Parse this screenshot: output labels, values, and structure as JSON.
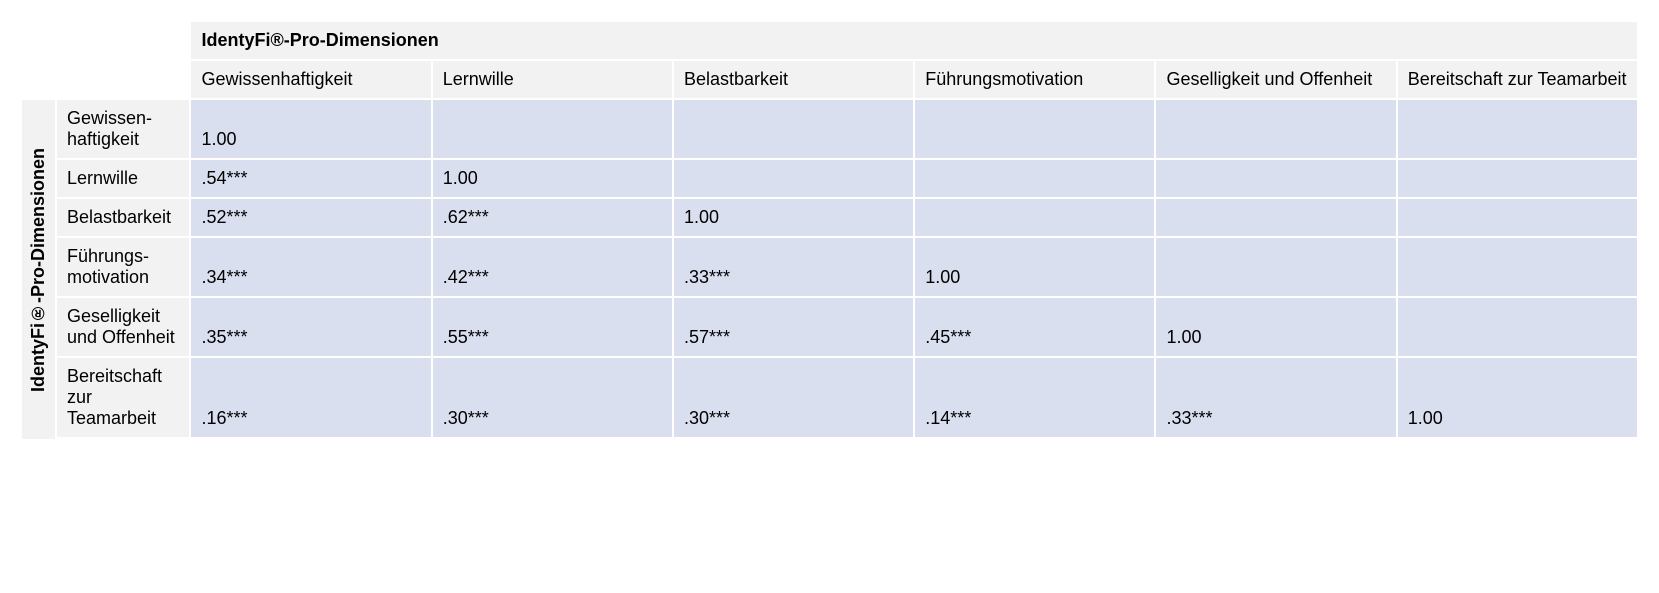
{
  "table": {
    "type": "table",
    "top_group_title": "IdentyFi®-Pro-Dimensionen",
    "side_group_title": "IdentyFi®-Pro-Dimensionen",
    "columns": [
      "Gewissenhaftigkeit",
      "Lernwille",
      "Belastbarkeit",
      "Führungsmotivation",
      "Geselligkeit und Offenheit",
      "Bereitschaft zur Teamarbeit"
    ],
    "row_labels": [
      "Gewissen-haftigkeit",
      "Lernwille",
      "Belastbarkeit",
      "Führungs-motivation",
      "Geselligkeit und Offenheit",
      "Bereitschaft zur Teamarbeit"
    ],
    "rows": [
      [
        "1.00",
        "",
        "",
        "",
        "",
        ""
      ],
      [
        ".54***",
        "1.00",
        "",
        "",
        "",
        ""
      ],
      [
        ".52***",
        ".62***",
        "1.00",
        "",
        "",
        ""
      ],
      [
        ".34***",
        ".42***",
        ".33***",
        "1.00",
        "",
        ""
      ],
      [
        ".35***",
        ".55***",
        ".57***",
        ".45***",
        "1.00",
        ""
      ],
      [
        ".16***",
        ".30***",
        ".30***",
        ".14***",
        ".33***",
        "1.00"
      ]
    ],
    "colors": {
      "header_bg": "#f2f2f2",
      "cell_bg": "#dadff0",
      "border": "#ffffff",
      "text": "#000000"
    },
    "font_size_pt": 13
  }
}
